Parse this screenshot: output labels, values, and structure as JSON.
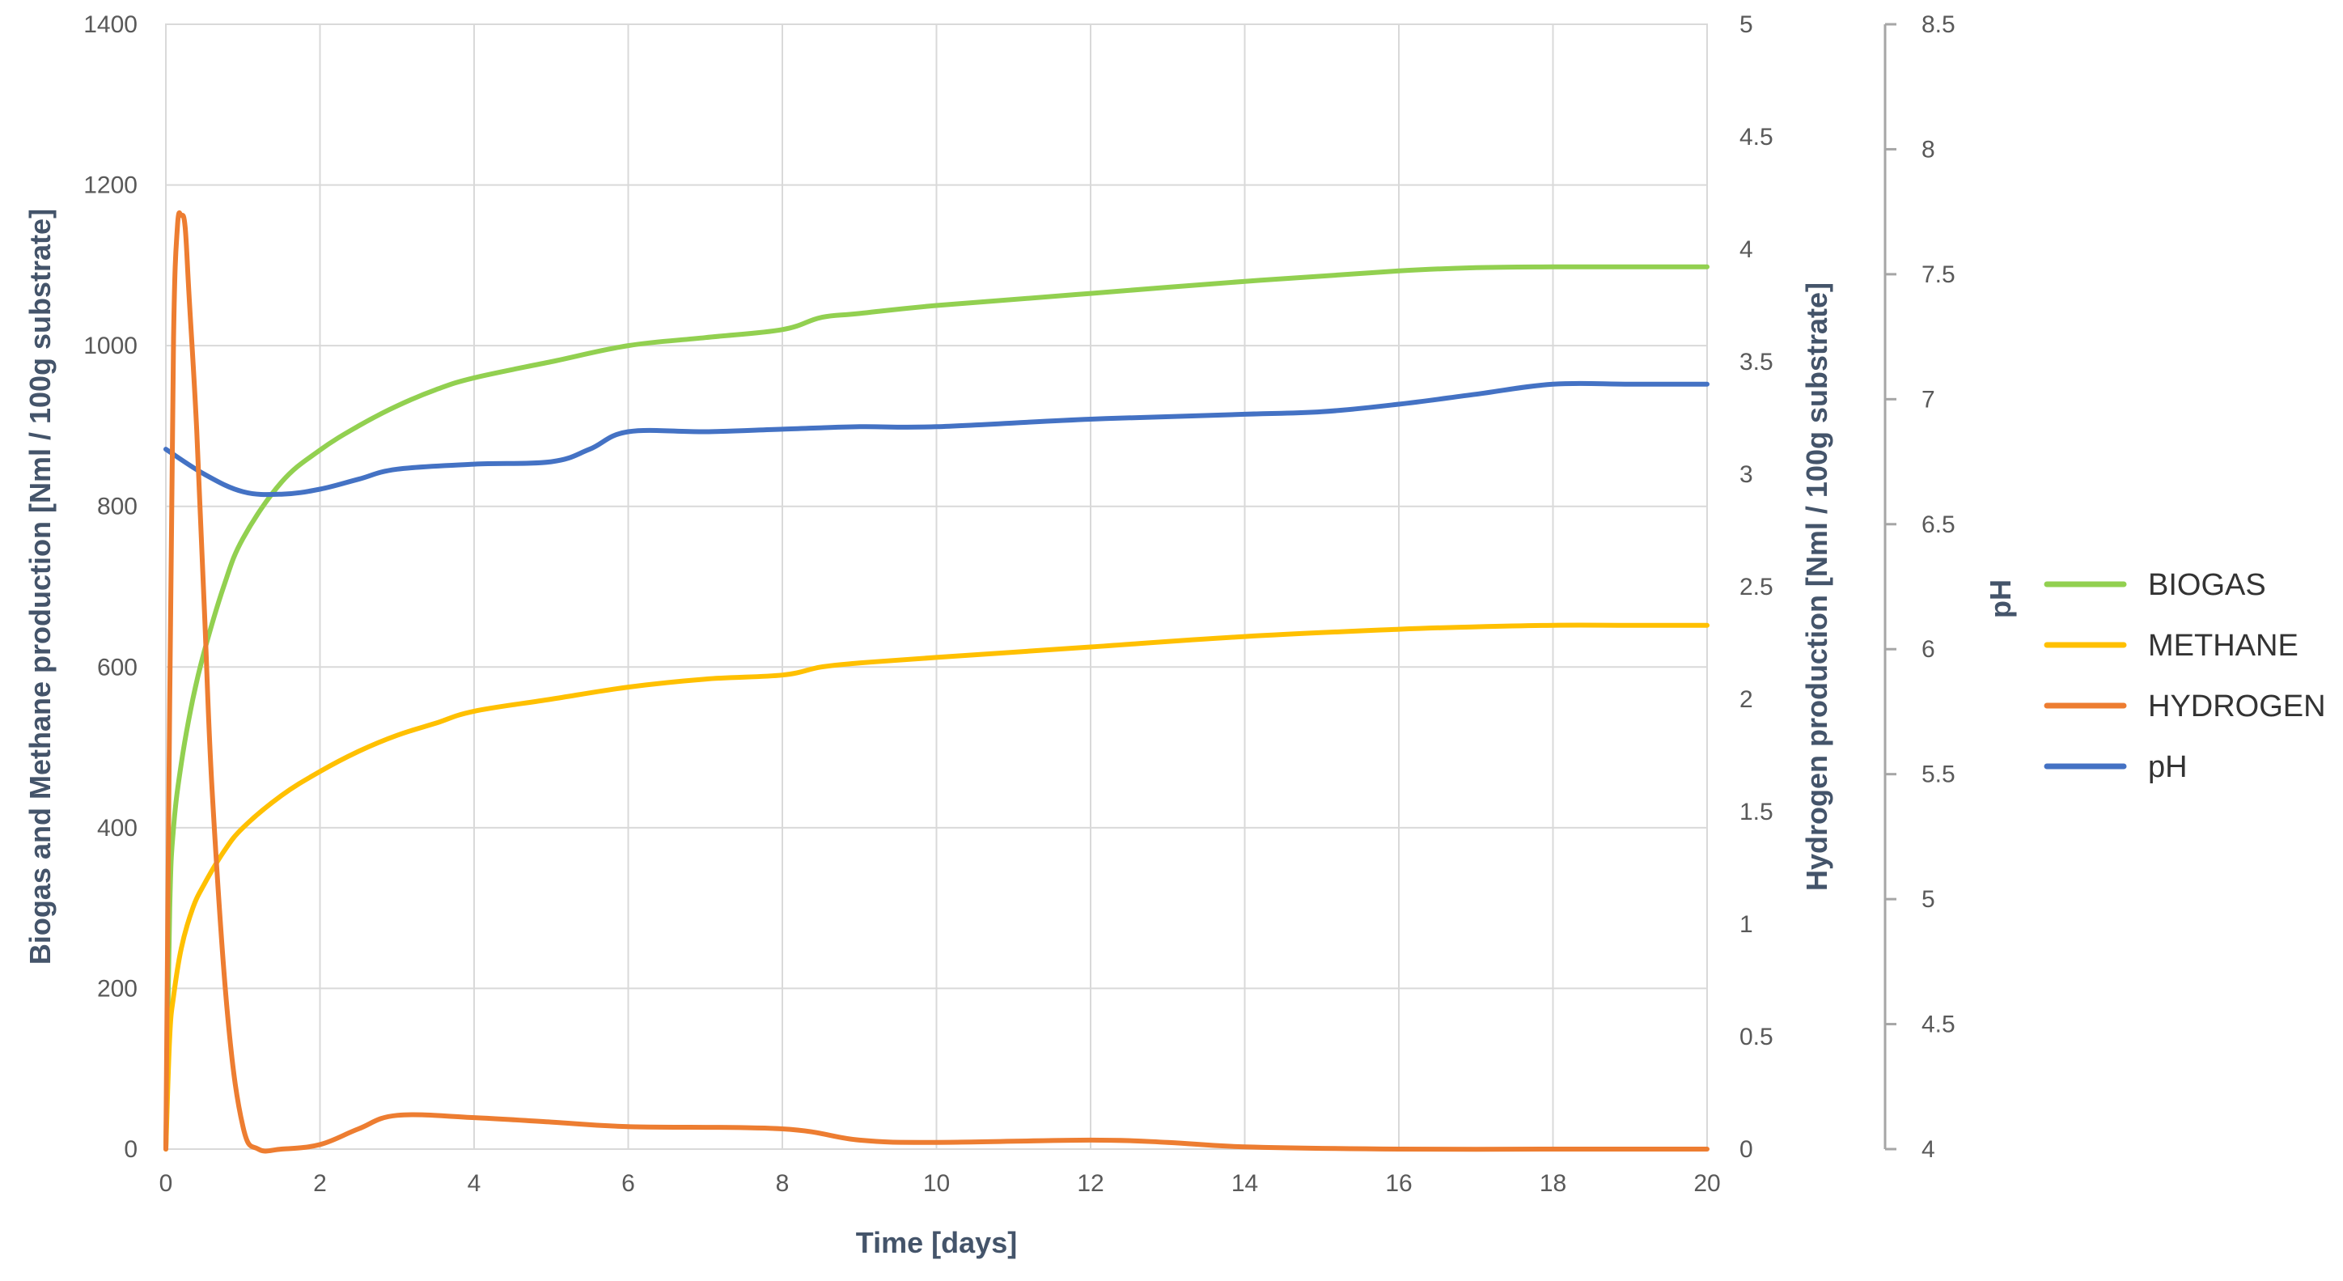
{
  "chart_data": {
    "type": "line",
    "title": "",
    "xlabel": "Time [days]",
    "xlim": [
      0,
      20
    ],
    "x_ticks": [
      "0",
      "2",
      "4",
      "6",
      "8",
      "10",
      "12",
      "14",
      "16",
      "18",
      "20"
    ],
    "y_axes": {
      "left": {
        "label": "Biogas and Methane production [Nml / 100g substrate]",
        "lim": [
          0,
          1400
        ],
        "ticks": [
          "0",
          "200",
          "400",
          "600",
          "800",
          "1000",
          "1200",
          "1400"
        ]
      },
      "right1": {
        "label": "Hydrogen production [Nml / 100g substrate]",
        "lim": [
          0,
          5
        ],
        "ticks": [
          "0",
          "0.5",
          "1",
          "1.5",
          "2",
          "2.5",
          "3",
          "3.5",
          "4",
          "4.5",
          "5"
        ]
      },
      "right2": {
        "label": "pH",
        "lim": [
          4,
          8.5
        ],
        "ticks": [
          "4",
          "4.5",
          "5",
          "5.5",
          "6",
          "6.5",
          "7",
          "7.5",
          "8",
          "8.5"
        ]
      }
    },
    "grid": true,
    "legend_position": "right",
    "series": [
      {
        "name": "BIOGAS",
        "axis": "left",
        "color": "#92d050",
        "x": [
          0,
          0.05,
          0.1,
          0.2,
          0.35,
          0.5,
          0.75,
          1,
          1.5,
          2,
          2.5,
          3,
          3.5,
          4,
          5,
          6,
          7,
          8,
          8.5,
          9,
          10,
          12,
          14,
          16,
          17,
          18,
          19,
          20
        ],
        "y": [
          0,
          300,
          400,
          480,
          560,
          620,
          700,
          760,
          830,
          870,
          900,
          925,
          945,
          960,
          980,
          1000,
          1010,
          1020,
          1035,
          1040,
          1050,
          1065,
          1080,
          1093,
          1097,
          1098,
          1098,
          1098
        ]
      },
      {
        "name": "METHANE",
        "axis": "left",
        "color": "#ffc000",
        "x": [
          0,
          0.05,
          0.1,
          0.2,
          0.35,
          0.5,
          0.75,
          1,
          1.5,
          2,
          2.5,
          3,
          3.5,
          4,
          5,
          6,
          7,
          8,
          8.5,
          9,
          10,
          12,
          14,
          16,
          17,
          18,
          19,
          20
        ],
        "y": [
          0,
          140,
          190,
          250,
          300,
          330,
          370,
          400,
          440,
          470,
          495,
          515,
          530,
          545,
          560,
          575,
          585,
          590,
          600,
          605,
          612,
          625,
          638,
          647,
          650,
          652,
          652,
          652
        ]
      },
      {
        "name": "HYDROGEN",
        "axis": "right1",
        "color": "#ed7d31",
        "x": [
          0,
          0.05,
          0.1,
          0.15,
          0.2,
          0.25,
          0.3,
          0.4,
          0.5,
          0.6,
          0.8,
          1,
          1.2,
          1.5,
          2,
          2.5,
          3,
          4,
          5,
          6,
          8,
          9,
          10,
          12,
          13,
          14,
          16,
          18,
          20
        ],
        "y": [
          0,
          2.0,
          3.6,
          4.1,
          4.15,
          4.1,
          3.8,
          3.2,
          2.4,
          1.6,
          0.6,
          0.1,
          0.0,
          0.0,
          0.02,
          0.09,
          0.15,
          0.14,
          0.12,
          0.1,
          0.09,
          0.04,
          0.03,
          0.04,
          0.03,
          0.01,
          0.0,
          0.0,
          0.0
        ]
      },
      {
        "name": "pH",
        "axis": "right2",
        "color": "#4472c4",
        "x": [
          0,
          0.5,
          1,
          1.5,
          2,
          2.5,
          3,
          4,
          5,
          5.5,
          6,
          7,
          8,
          9,
          10,
          12,
          14,
          15,
          16,
          17,
          18,
          19,
          20
        ],
        "y": [
          6.8,
          6.7,
          6.63,
          6.62,
          6.64,
          6.68,
          6.72,
          6.74,
          6.75,
          6.8,
          6.87,
          6.87,
          6.88,
          6.89,
          6.89,
          6.92,
          6.94,
          6.95,
          6.98,
          7.02,
          7.06,
          7.06,
          7.06
        ]
      }
    ]
  }
}
